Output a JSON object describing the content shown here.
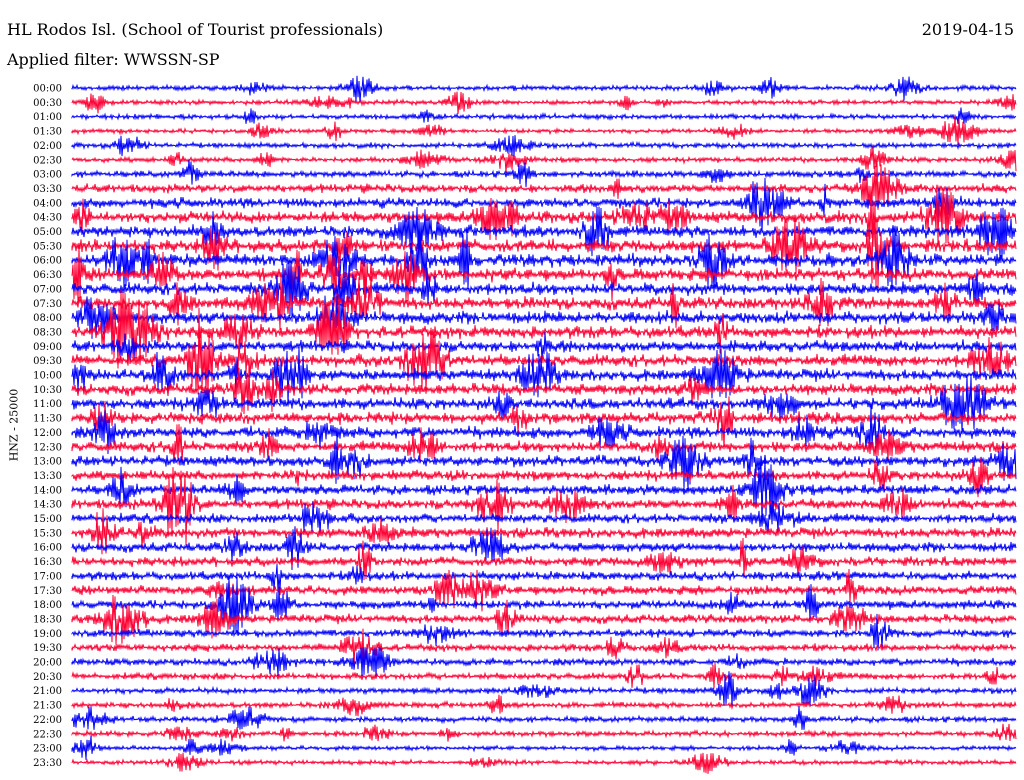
{
  "header": {
    "station": "HL Rodos Isl. (School of Tourist professionals)",
    "date": "2019-04-15",
    "filter": "Applied filter: WWSSN-SP"
  },
  "chart_data": {
    "type": "line",
    "title": "HL Rodos Isl. (School of Tourist professionals)",
    "ylabel": "HNZ - 25000",
    "row_labels": [
      "00:00",
      "00:30",
      "01:00",
      "01:30",
      "02:00",
      "02:30",
      "03:00",
      "03:30",
      "04:00",
      "04:30",
      "05:00",
      "05:30",
      "06:00",
      "06:30",
      "07:00",
      "07:30",
      "08:00",
      "08:30",
      "09:00",
      "09:30",
      "10:00",
      "10:30",
      "11:00",
      "11:30",
      "12:00",
      "12:30",
      "13:00",
      "13:30",
      "14:00",
      "14:30",
      "15:00",
      "15:30",
      "16:00",
      "16:30",
      "17:00",
      "17:30",
      "18:00",
      "18:30",
      "19:00",
      "19:30",
      "20:00",
      "20:30",
      "21:00",
      "21:30",
      "22:00",
      "22:30",
      "23:00",
      "23:30"
    ],
    "colors": [
      "#0000ff",
      "#ff0033"
    ],
    "row_amplitude": [
      0.35,
      0.3,
      0.35,
      0.3,
      0.35,
      0.35,
      0.45,
      0.6,
      0.7,
      0.8,
      0.85,
      0.9,
      0.9,
      0.9,
      0.85,
      0.85,
      0.85,
      0.85,
      0.8,
      0.85,
      0.8,
      0.8,
      0.8,
      0.8,
      0.8,
      0.75,
      0.75,
      0.7,
      0.7,
      0.7,
      0.65,
      0.7,
      0.65,
      0.65,
      0.6,
      0.65,
      0.6,
      0.6,
      0.55,
      0.5,
      0.5,
      0.45,
      0.4,
      0.4,
      0.4,
      0.35,
      0.3,
      0.3
    ],
    "grid": false
  }
}
